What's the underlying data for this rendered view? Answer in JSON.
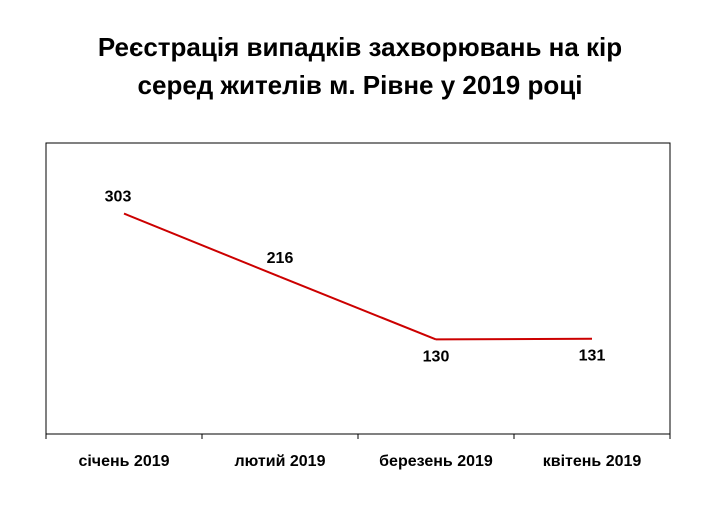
{
  "chart_data": {
    "type": "line",
    "title_line1": "Реєстрація випадків захворювань на кір",
    "title_line2": "серед жителів м. Рівне у 2019 році",
    "categories": [
      "січень 2019",
      "лютий 2019",
      "березень 2019",
      "квітень 2019"
    ],
    "series": [
      {
        "values": [
          303,
          216,
          130,
          131
        ],
        "color": "#cc0000"
      }
    ],
    "data_labels": [
      "303",
      "216",
      "130",
      "131"
    ],
    "ylim": [
      0,
      400
    ],
    "grid": false,
    "legend": "none"
  }
}
